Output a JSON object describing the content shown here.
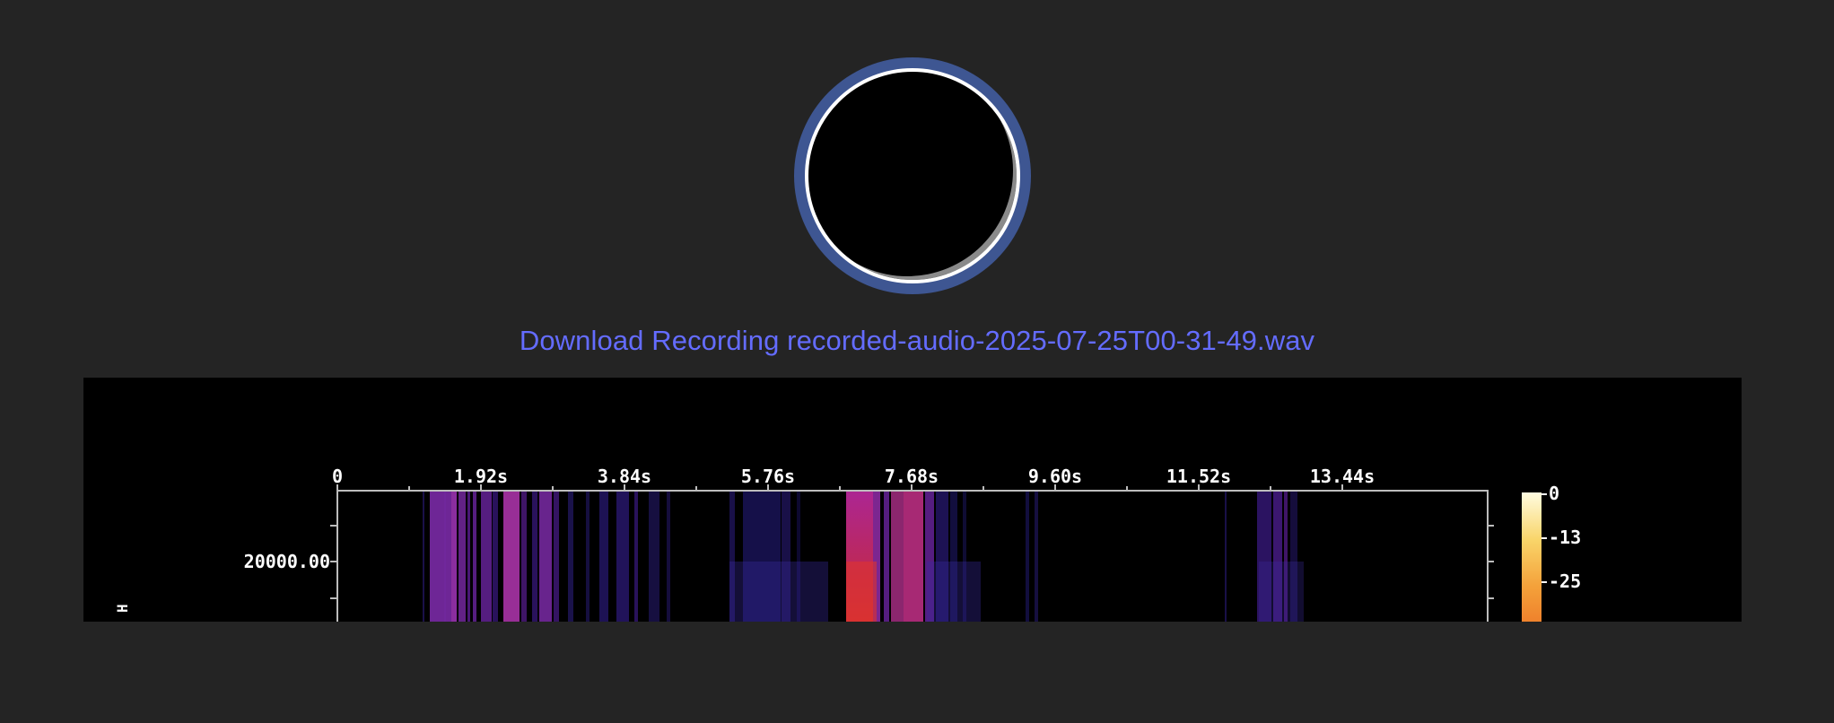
{
  "recorder": {
    "ring_color": "#3e5692",
    "inner_color": "#000000",
    "border_color": "#ffffff"
  },
  "download": {
    "label": "Download Recording recorded-audio-2025-07-25T00-31-49.wav",
    "color": "#646cff"
  },
  "spectrogram": {
    "time_ticks": [
      "0",
      "1.92s",
      "3.84s",
      "5.76s",
      "7.68s",
      "9.60s",
      "11.52s",
      "13.44s"
    ],
    "freq_ticks": [
      "20000.00"
    ],
    "axis_glyph": "H",
    "colorbar_ticks": [
      "0",
      "-13",
      "-25"
    ],
    "colorscale": [
      "#fffce0",
      "#f7c84e",
      "#f08a2a",
      "#c42f4c",
      "#5a1a8a",
      "#000000"
    ]
  }
}
